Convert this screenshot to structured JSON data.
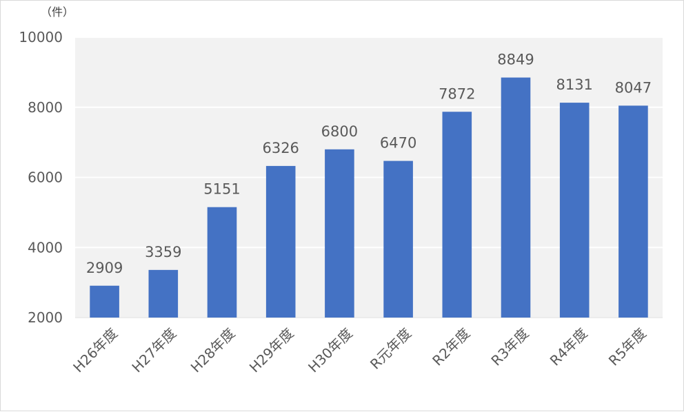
{
  "chart_data": {
    "type": "bar",
    "unit_label": "（件）",
    "categories": [
      "H26年度",
      "H27年度",
      "H28年度",
      "H29年度",
      "H30年度",
      "R元年度",
      "R2年度",
      "R3年度",
      "R4年度",
      "R5年度"
    ],
    "values": [
      2909,
      3359,
      5151,
      6326,
      6800,
      6470,
      7872,
      8849,
      8131,
      8047
    ],
    "ylim": [
      2000,
      10000
    ],
    "yticks": [
      2000,
      4000,
      6000,
      8000,
      10000
    ],
    "grid": true,
    "legend": "none",
    "bar_color": "#4472C4",
    "plot_background": "#f2f2f2",
    "grid_color": "#ffffff"
  }
}
